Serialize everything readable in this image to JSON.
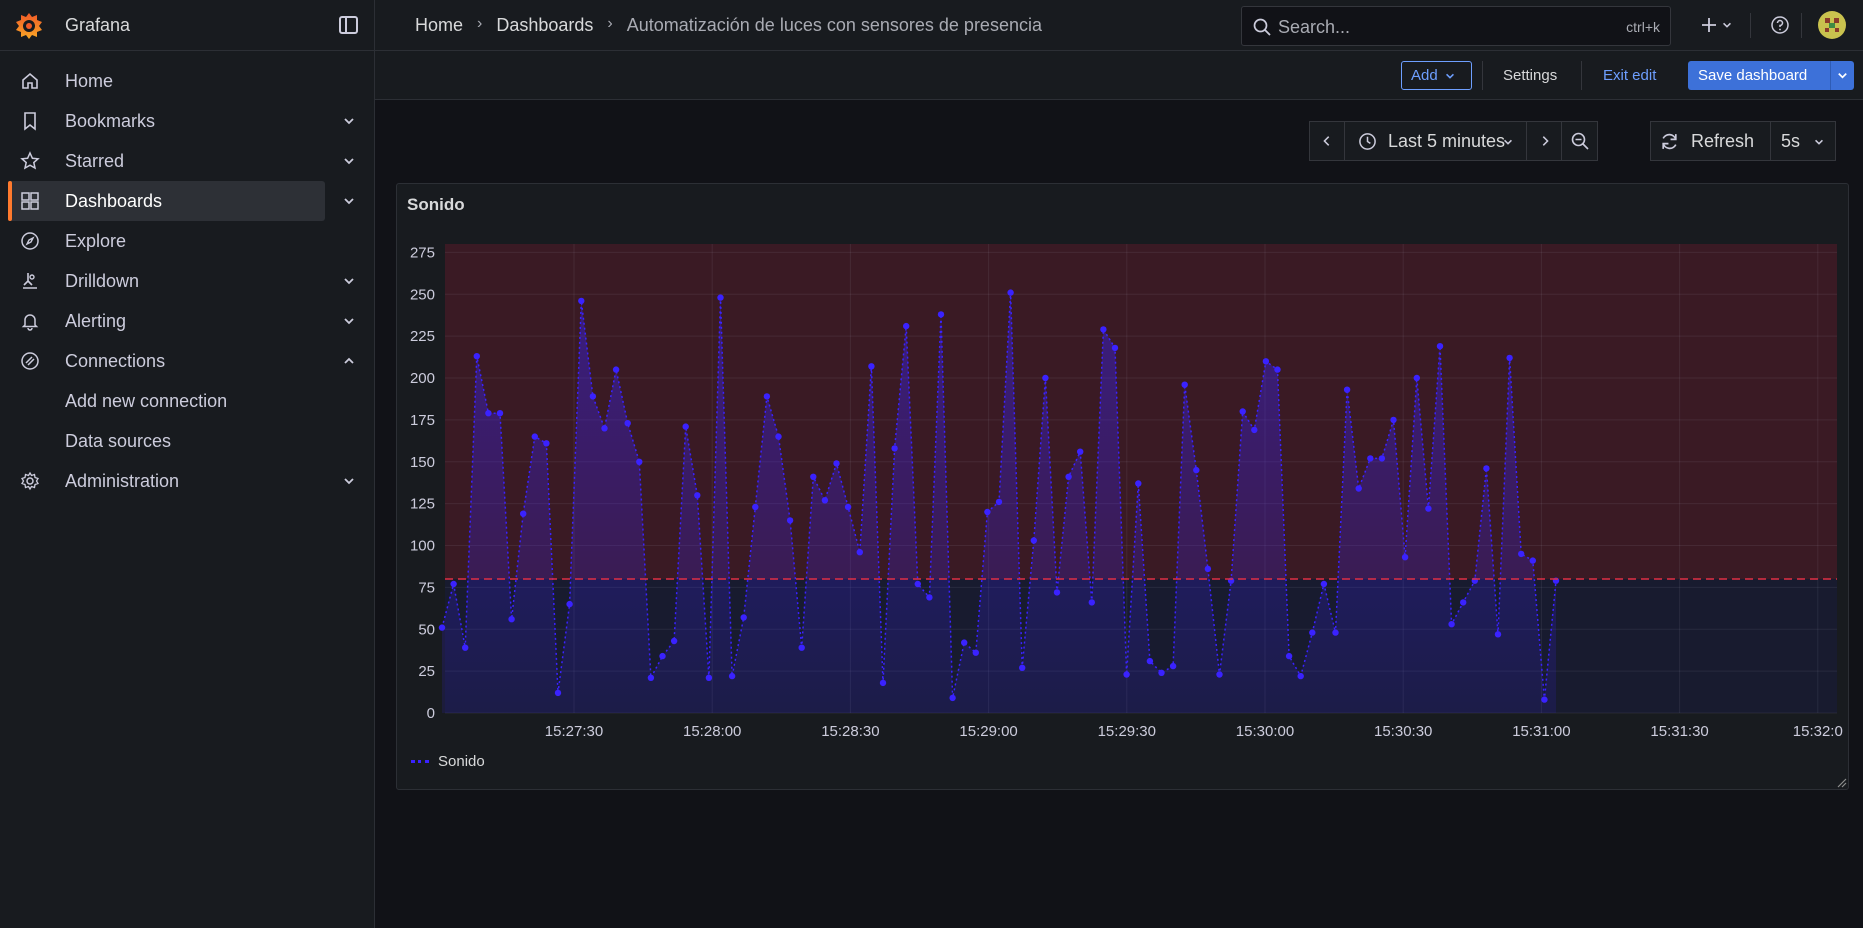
{
  "app": {
    "name": "Grafana"
  },
  "sidebar": {
    "items": [
      {
        "label": "Home",
        "icon": "home-icon"
      },
      {
        "label": "Bookmarks",
        "icon": "bookmark-icon"
      },
      {
        "label": "Starred",
        "icon": "star-icon"
      },
      {
        "label": "Dashboards",
        "icon": "dashboards-icon"
      },
      {
        "label": "Explore",
        "icon": "compass-icon"
      },
      {
        "label": "Drilldown",
        "icon": "drilldown-icon"
      },
      {
        "label": "Alerting",
        "icon": "bell-icon"
      },
      {
        "label": "Connections",
        "icon": "connections-icon"
      },
      {
        "label": "Add new connection"
      },
      {
        "label": "Data sources"
      },
      {
        "label": "Administration",
        "icon": "gear-icon"
      }
    ]
  },
  "breadcrumb": [
    "Home",
    "Dashboards",
    "Automatización de luces con sensores de presencia"
  ],
  "search": {
    "placeholder": "Search...",
    "shortcut": "ctrl+k"
  },
  "toolbar": {
    "add_label": "Add",
    "settings_label": "Settings",
    "exit_label": "Exit edit",
    "save_label": "Save dashboard"
  },
  "time": {
    "range_label": "Last 5 minutes",
    "refresh_label": "Refresh",
    "interval": "5s"
  },
  "colors": {
    "accent": "#ff7a2e",
    "primary": "#3d71d9",
    "series": "#3a22ff",
    "threshold": "#e02f44"
  },
  "panel": {
    "title": "Sonido"
  },
  "chart_data": {
    "type": "line",
    "series_name": "Sonido",
    "x_ticks": [
      "15:27:30",
      "15:28:00",
      "15:28:30",
      "15:29:00",
      "15:29:30",
      "15:30:00",
      "15:30:30",
      "15:31:00",
      "15:31:30",
      "15:32:0"
    ],
    "y_ticks": [
      "0",
      "25",
      "50",
      "75",
      "100",
      "125",
      "150",
      "175",
      "200",
      "225",
      "250",
      "275"
    ],
    "ylim": [
      0,
      280
    ],
    "threshold": 80,
    "values": [
      51,
      77,
      39,
      213,
      179,
      179,
      56,
      119,
      165,
      161,
      12,
      65,
      246,
      189,
      170,
      205,
      173,
      150,
      21,
      34,
      43,
      171,
      130,
      21,
      248,
      22,
      57,
      123,
      189,
      165,
      115,
      39,
      141,
      127,
      149,
      123,
      96,
      207,
      18,
      158,
      231,
      77,
      69,
      238,
      9,
      42,
      36,
      120,
      126,
      251,
      27,
      103,
      200,
      72,
      141,
      156,
      66,
      229,
      218,
      23,
      137,
      31,
      24,
      28,
      196,
      145,
      86,
      23,
      79,
      180,
      169,
      210,
      205,
      34,
      22,
      48,
      77,
      48,
      193,
      134,
      152,
      152,
      175,
      93,
      200,
      122,
      219,
      53,
      66,
      79,
      146,
      47,
      212,
      95,
      91,
      8,
      79
    ]
  }
}
